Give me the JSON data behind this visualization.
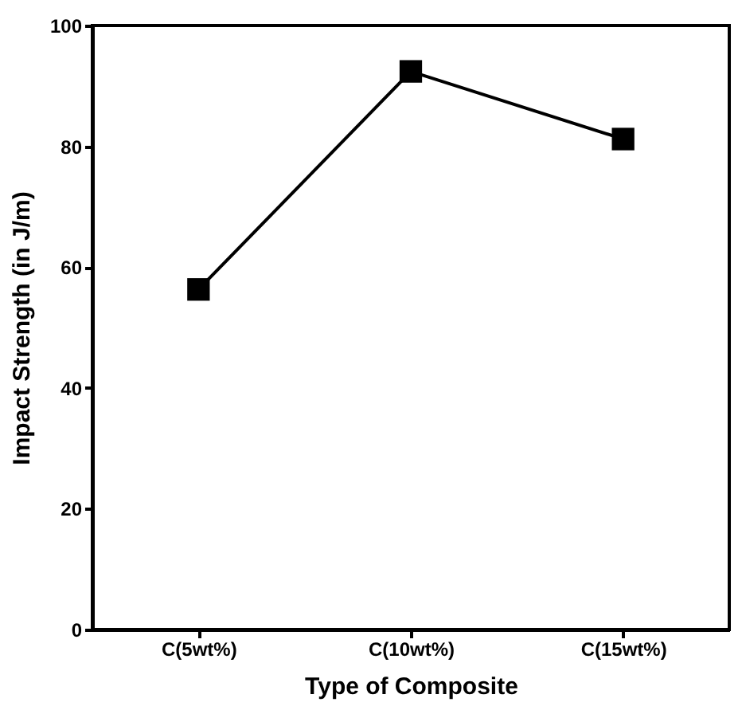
{
  "chart_data": {
    "type": "line",
    "xlabel": "Type of Composite",
    "ylabel": "Impact Strength (in J/m)",
    "categories": [
      "C(5wt%)",
      "C(10wt%)",
      "C(15wt%)"
    ],
    "series": [
      {
        "color": "#000000",
        "values": [
          56.3,
          92.4,
          81.2
        ]
      }
    ],
    "ylim": [
      0,
      100
    ],
    "yticks": [
      0,
      20,
      40,
      60,
      80,
      100
    ],
    "grid": false,
    "marker": "square",
    "line_style": "solid"
  }
}
